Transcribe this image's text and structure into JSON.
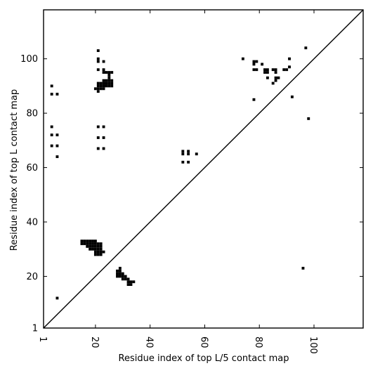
{
  "chart_data": {
    "type": "scatter",
    "title": "",
    "xlabel": "Residue index of top L/5 contact map",
    "ylabel": "Residue index of top L contact map",
    "xlim": [
      1,
      118
    ],
    "ylim": [
      1,
      118
    ],
    "xticks": [
      1,
      20,
      40,
      60,
      80,
      100
    ],
    "yticks": [
      1,
      20,
      40,
      60,
      80,
      100
    ],
    "grid": false,
    "legend": "none",
    "diagonal": true,
    "point_color": "#000000",
    "series": [
      {
        "upper_triangle_points": [
          [
            4,
            90
          ],
          [
            4,
            87
          ],
          [
            6,
            87
          ],
          [
            4,
            75
          ],
          [
            4,
            72
          ],
          [
            6,
            72
          ],
          [
            4,
            68
          ],
          [
            6,
            68
          ],
          [
            6,
            64
          ],
          [
            21,
            103
          ],
          [
            21,
            100
          ],
          [
            21,
            99
          ],
          [
            23,
            99
          ],
          [
            21,
            96
          ],
          [
            23,
            96
          ],
          [
            23,
            95
          ],
          [
            24,
            95
          ],
          [
            25,
            95
          ],
          [
            26,
            95
          ],
          [
            25,
            94
          ],
          [
            25,
            93
          ],
          [
            23,
            92
          ],
          [
            24,
            92
          ],
          [
            25,
            92
          ],
          [
            26,
            92
          ],
          [
            20,
            89
          ],
          [
            21,
            89
          ],
          [
            22,
            89
          ],
          [
            23,
            89
          ],
          [
            21,
            88
          ],
          [
            21,
            91
          ],
          [
            22,
            91
          ],
          [
            23,
            91
          ],
          [
            24,
            91
          ],
          [
            25,
            91
          ],
          [
            26,
            91
          ],
          [
            21,
            90
          ],
          [
            22,
            90
          ],
          [
            23,
            90
          ],
          [
            24,
            90
          ],
          [
            25,
            90
          ],
          [
            26,
            90
          ],
          [
            21,
            75
          ],
          [
            23,
            75
          ],
          [
            21,
            71
          ],
          [
            23,
            71
          ],
          [
            21,
            67
          ],
          [
            23,
            67
          ],
          [
            52,
            66
          ],
          [
            54,
            66
          ],
          [
            52,
            65
          ],
          [
            54,
            65
          ],
          [
            57,
            65
          ],
          [
            52,
            62
          ],
          [
            54,
            62
          ],
          [
            74,
            100
          ],
          [
            78,
            99
          ],
          [
            79,
            99
          ],
          [
            78,
            98
          ],
          [
            81,
            98
          ],
          [
            78,
            96
          ],
          [
            79,
            96
          ],
          [
            82,
            96
          ],
          [
            83,
            96
          ],
          [
            85,
            96
          ],
          [
            86,
            96
          ],
          [
            82,
            95
          ],
          [
            83,
            95
          ],
          [
            86,
            95
          ],
          [
            83,
            93
          ],
          [
            86,
            93
          ],
          [
            87,
            93
          ],
          [
            86,
            92
          ],
          [
            85,
            91
          ],
          [
            78,
            85
          ],
          [
            89,
            96
          ],
          [
            90,
            96
          ],
          [
            91,
            97
          ],
          [
            91,
            100
          ],
          [
            97,
            104
          ],
          [
            92,
            86
          ],
          [
            98,
            78
          ]
        ],
        "lower_triangle_points": [
          [
            6,
            12
          ],
          [
            15,
            33
          ],
          [
            16,
            33
          ],
          [
            17,
            33
          ],
          [
            18,
            33
          ],
          [
            19,
            33
          ],
          [
            20,
            33
          ],
          [
            15,
            32
          ],
          [
            16,
            32
          ],
          [
            17,
            32
          ],
          [
            18,
            32
          ],
          [
            19,
            32
          ],
          [
            20,
            32
          ],
          [
            21,
            32
          ],
          [
            22,
            32
          ],
          [
            17,
            31
          ],
          [
            18,
            31
          ],
          [
            19,
            31
          ],
          [
            20,
            31
          ],
          [
            21,
            31
          ],
          [
            22,
            31
          ],
          [
            18,
            30
          ],
          [
            19,
            30
          ],
          [
            20,
            30
          ],
          [
            21,
            30
          ],
          [
            22,
            30
          ],
          [
            20,
            29
          ],
          [
            21,
            29
          ],
          [
            22,
            29
          ],
          [
            23,
            29
          ],
          [
            20,
            28
          ],
          [
            21,
            28
          ],
          [
            22,
            28
          ],
          [
            29,
            23
          ],
          [
            28,
            22
          ],
          [
            29,
            22
          ],
          [
            28,
            21
          ],
          [
            29,
            21
          ],
          [
            30,
            21
          ],
          [
            28,
            20
          ],
          [
            29,
            20
          ],
          [
            30,
            20
          ],
          [
            31,
            20
          ],
          [
            30,
            19
          ],
          [
            31,
            19
          ],
          [
            32,
            19
          ],
          [
            32,
            18
          ],
          [
            33,
            18
          ],
          [
            34,
            18
          ],
          [
            32,
            17
          ],
          [
            33,
            17
          ],
          [
            96,
            23
          ]
        ]
      }
    ]
  }
}
